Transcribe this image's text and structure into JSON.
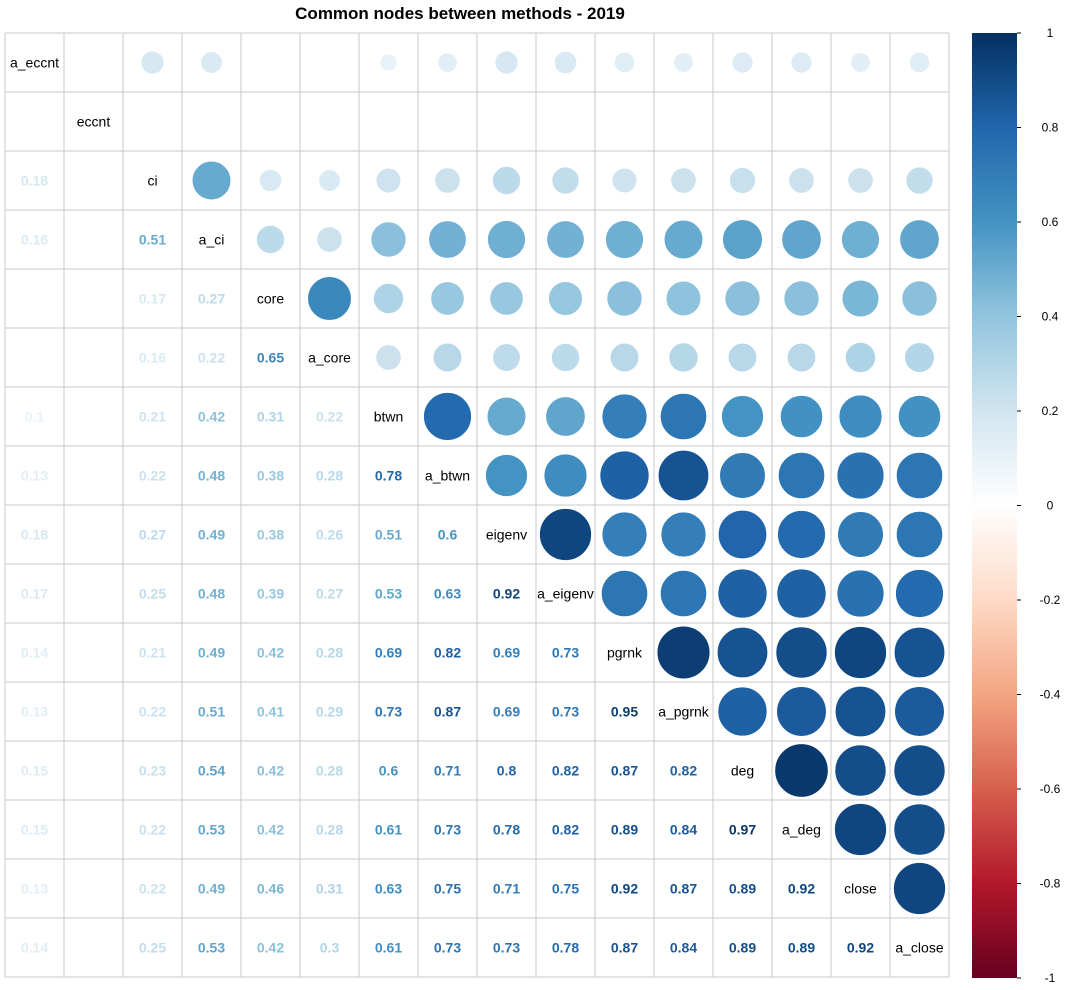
{
  "chart_data": {
    "type": "heatmap",
    "subtype": "correlation-matrix-mixed",
    "title": "Common nodes between methods - 2019",
    "upper_style": "circle",
    "lower_style": "number",
    "variables": [
      "a_eccnt",
      "eccnt",
      "ci",
      "a_ci",
      "core",
      "a_core",
      "btwn",
      "a_btwn",
      "eigenv",
      "a_eigenv",
      "pgrnk",
      "a_pgrnk",
      "deg",
      "a_deg",
      "close",
      "a_close"
    ],
    "matrix": [
      [
        1,
        null,
        0.18,
        0.16,
        null,
        null,
        0.1,
        0.13,
        0.18,
        0.17,
        0.14,
        0.13,
        0.15,
        0.15,
        0.13,
        0.14
      ],
      [
        null,
        1,
        null,
        null,
        null,
        null,
        null,
        null,
        null,
        null,
        null,
        null,
        null,
        null,
        null,
        null
      ],
      [
        0.18,
        null,
        1,
        0.51,
        0.17,
        0.16,
        0.21,
        0.22,
        0.27,
        0.25,
        0.21,
        0.22,
        0.23,
        0.22,
        0.22,
        0.25
      ],
      [
        0.16,
        null,
        0.51,
        1,
        0.27,
        0.22,
        0.42,
        0.48,
        0.49,
        0.48,
        0.49,
        0.51,
        0.54,
        0.53,
        0.49,
        0.53
      ],
      [
        null,
        null,
        0.17,
        0.27,
        1,
        0.65,
        0.31,
        0.38,
        0.38,
        0.39,
        0.42,
        0.41,
        0.42,
        0.42,
        0.46,
        0.42
      ],
      [
        null,
        null,
        0.16,
        0.22,
        0.65,
        1,
        0.22,
        0.28,
        0.26,
        0.27,
        0.28,
        0.29,
        0.28,
        0.28,
        0.31,
        0.3
      ],
      [
        0.1,
        null,
        0.21,
        0.42,
        0.31,
        0.22,
        1,
        0.78,
        0.51,
        0.53,
        0.69,
        0.73,
        0.6,
        0.61,
        0.63,
        0.61
      ],
      [
        0.13,
        null,
        0.22,
        0.48,
        0.38,
        0.28,
        0.78,
        1,
        0.6,
        0.63,
        0.82,
        0.87,
        0.71,
        0.73,
        0.75,
        0.73
      ],
      [
        0.18,
        null,
        0.27,
        0.49,
        0.38,
        0.26,
        0.51,
        0.6,
        1,
        0.92,
        0.69,
        0.69,
        0.8,
        0.78,
        0.71,
        0.73
      ],
      [
        0.17,
        null,
        0.25,
        0.48,
        0.39,
        0.27,
        0.53,
        0.63,
        0.92,
        1,
        0.73,
        0.73,
        0.82,
        0.82,
        0.75,
        0.78
      ],
      [
        0.14,
        null,
        0.21,
        0.49,
        0.42,
        0.28,
        0.69,
        0.82,
        0.69,
        0.73,
        1,
        0.95,
        0.87,
        0.89,
        0.92,
        0.87
      ],
      [
        0.13,
        null,
        0.22,
        0.51,
        0.41,
        0.29,
        0.73,
        0.87,
        0.69,
        0.73,
        0.95,
        1,
        0.82,
        0.84,
        0.87,
        0.84
      ],
      [
        0.15,
        null,
        0.23,
        0.54,
        0.42,
        0.28,
        0.6,
        0.71,
        0.8,
        0.82,
        0.87,
        0.82,
        1,
        0.97,
        0.89,
        0.89
      ],
      [
        0.15,
        null,
        0.22,
        0.53,
        0.42,
        0.28,
        0.61,
        0.73,
        0.78,
        0.82,
        0.89,
        0.84,
        0.97,
        1,
        0.92,
        0.89
      ],
      [
        0.13,
        null,
        0.22,
        0.49,
        0.46,
        0.31,
        0.63,
        0.75,
        0.71,
        0.75,
        0.92,
        0.87,
        0.89,
        0.92,
        1,
        0.92
      ],
      [
        0.14,
        null,
        0.25,
        0.53,
        0.42,
        0.3,
        0.61,
        0.73,
        0.73,
        0.78,
        0.87,
        0.84,
        0.89,
        0.89,
        0.92,
        1
      ]
    ],
    "color_scale": {
      "range": [
        -1,
        1
      ],
      "ticks": [
        "1",
        "0.8",
        "0.6",
        "0.4",
        "0.2",
        "0",
        "-0.2",
        "-0.4",
        "-0.6",
        "-0.8",
        "-1"
      ],
      "palette": [
        "#67001F",
        "#B2182B",
        "#D6604D",
        "#F4A582",
        "#FDDBC7",
        "#FFFFFF",
        "#D1E5F0",
        "#92C5DE",
        "#4393C3",
        "#2166AC",
        "#053061"
      ]
    },
    "legend_position": "right",
    "grid": true
  }
}
